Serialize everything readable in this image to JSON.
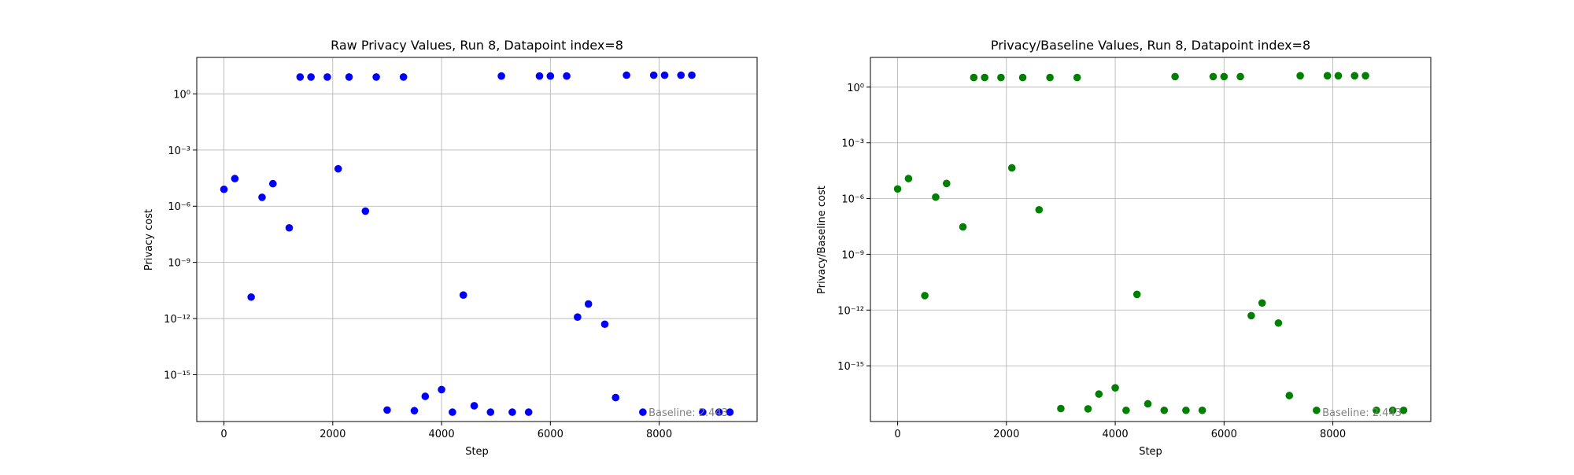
{
  "chart_data": [
    {
      "type": "scatter",
      "title": "Raw Privacy Values, Run 8, Datapoint index=8",
      "xlabel": "Step",
      "ylabel": "Privacy cost",
      "yscale": "log",
      "xlim": [
        -500,
        9800
      ],
      "ylim_exp": [
        -17.5,
        1.95
      ],
      "xticks": [
        0,
        2000,
        4000,
        6000,
        8000
      ],
      "yticks_exp": [
        0,
        -3,
        -6,
        -9,
        -12,
        -15
      ],
      "ytick_labels": [
        "10⁰",
        "10⁻³",
        "10⁻⁶",
        "10⁻⁹",
        "10⁻¹²",
        "10⁻¹⁵"
      ],
      "grid": true,
      "marker_color": "#0000ff",
      "annotation": "Baseline: 2.443",
      "annotation_position": "bottom-right",
      "x": [
        0,
        200,
        500,
        700,
        900,
        1200,
        1400,
        1600,
        1900,
        2100,
        2300,
        2600,
        2800,
        3000,
        3300,
        3500,
        3700,
        4000,
        4200,
        4400,
        4600,
        4900,
        5100,
        5300,
        5600,
        5800,
        6000,
        6300,
        6500,
        6700,
        7000,
        7200,
        7400,
        7700,
        7900,
        8100,
        8400,
        8600,
        8800,
        9100,
        9300
      ],
      "y": [
        8e-06,
        3e-05,
        1.4e-11,
        3e-06,
        1.6e-05,
        7e-08,
        8.0,
        8.0,
        8.0,
        0.0001,
        8.0,
        5.5e-07,
        8.0,
        1.3e-17,
        8.0,
        1.2e-17,
        7e-17,
        1.6e-16,
        1e-17,
        1.8e-11,
        2.2e-17,
        1e-17,
        9.0,
        1e-17,
        1e-17,
        9.0,
        9.0,
        9.0,
        1.2e-12,
        6e-12,
        5e-13,
        6e-17,
        10.0,
        1e-17,
        10.0,
        10.0,
        10.0,
        10.0,
        1e-17,
        1e-17,
        1e-17
      ]
    },
    {
      "type": "scatter",
      "title": "Privacy/Baseline Values, Run 8, Datapoint index=8",
      "xlabel": "Step",
      "ylabel": "Privacy/Baseline cost",
      "yscale": "log",
      "xlim": [
        -500,
        9800
      ],
      "ylim_exp": [
        -18.0,
        1.6
      ],
      "xticks": [
        0,
        2000,
        4000,
        6000,
        8000
      ],
      "yticks_exp": [
        0,
        -3,
        -6,
        -9,
        -12,
        -15
      ],
      "ytick_labels": [
        "10⁰",
        "10⁻³",
        "10⁻⁶",
        "10⁻⁹",
        "10⁻¹²",
        "10⁻¹⁵"
      ],
      "grid": true,
      "marker_color": "#008000",
      "annotation": "Baseline: 2.443",
      "annotation_position": "bottom-right",
      "x": [
        0,
        200,
        500,
        700,
        900,
        1200,
        1400,
        1600,
        1900,
        2100,
        2300,
        2600,
        2800,
        3000,
        3300,
        3500,
        3700,
        4000,
        4200,
        4400,
        4600,
        4900,
        5100,
        5300,
        5600,
        5800,
        6000,
        6300,
        6500,
        6700,
        7000,
        7200,
        7400,
        7700,
        7900,
        8100,
        8400,
        8600,
        8800,
        9100,
        9300
      ],
      "y": [
        3.3e-06,
        1.2e-05,
        6e-12,
        1.2e-06,
        6.5e-06,
        3e-08,
        3.3,
        3.3,
        3.3,
        4.5e-05,
        3.3,
        2.5e-07,
        3.3,
        5e-18,
        3.3,
        4.8e-18,
        3e-17,
        6.5e-17,
        4e-18,
        7e-12,
        9e-18,
        4e-18,
        3.7,
        4e-18,
        4e-18,
        3.7,
        3.7,
        3.7,
        5e-13,
        2.4e-12,
        2e-13,
        2.5e-17,
        4.1,
        4e-18,
        4.1,
        4.1,
        4.1,
        4.1,
        4e-18,
        4e-18,
        4e-18
      ]
    }
  ]
}
